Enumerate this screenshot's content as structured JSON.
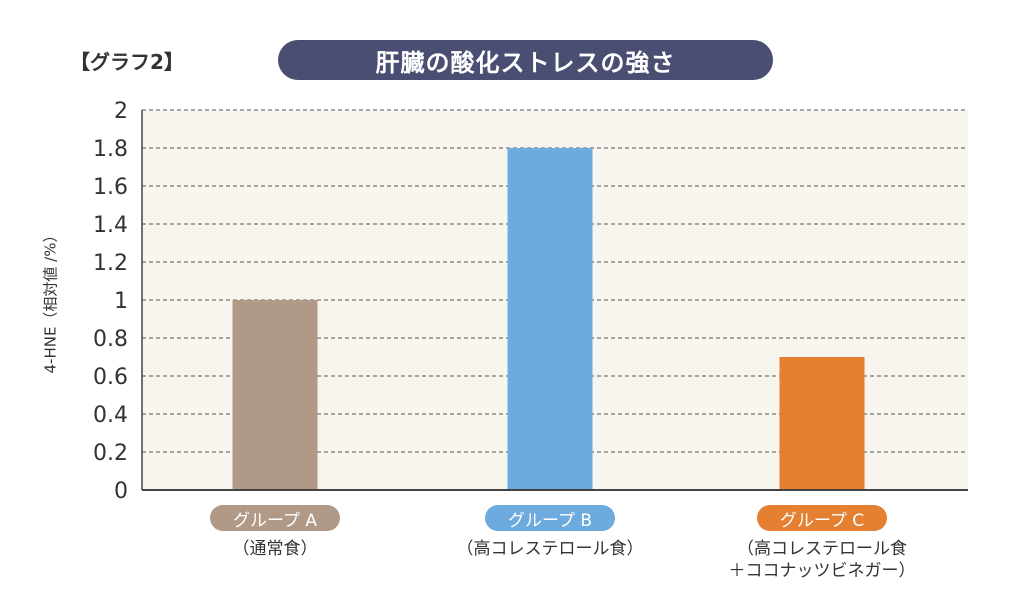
{
  "header": {
    "tag": "【グラフ2】",
    "title": "肝臓の酸化ストレスの強さ"
  },
  "chart_data": {
    "type": "bar",
    "title": "肝臓の酸化ストレスの強さ",
    "ylabel": "4-HNE（相対値 /%）",
    "xlabel": "",
    "ylim": [
      0,
      2
    ],
    "yticks": [
      "0",
      "0.2",
      "0.4",
      "0.6",
      "0.8",
      "1",
      "1.2",
      "1.4",
      "1.6",
      "1.8",
      "2"
    ],
    "grid": true,
    "categories": [
      "グループ A",
      "グループ B",
      "グループ C"
    ],
    "subtitles": [
      "（通常食）",
      "（高コレステロール食）",
      "（高コレステロール食\n＋ココナッツビネガー）"
    ],
    "values": [
      1.0,
      1.8,
      0.7
    ],
    "colors": [
      "#b09a87",
      "#6daadd",
      "#e57f31"
    ]
  }
}
